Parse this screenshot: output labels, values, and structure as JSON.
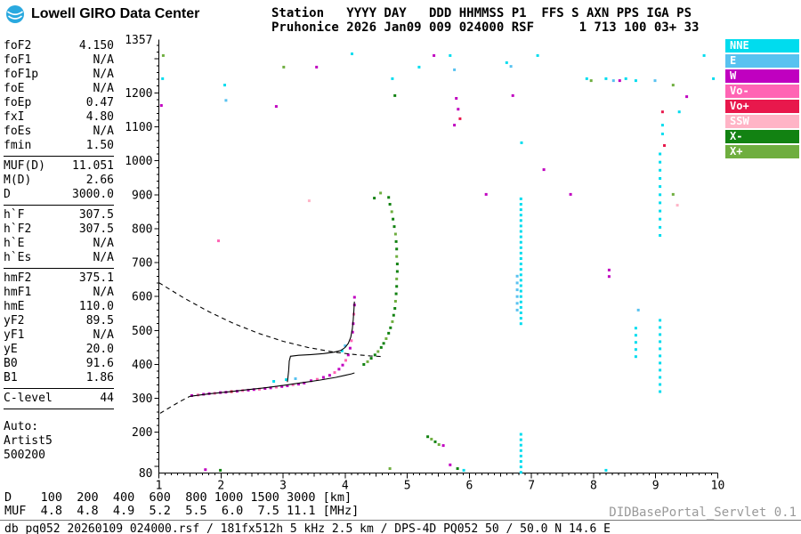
{
  "header": {
    "logo_text": "Lowell GIRO Data Center",
    "station_line1": "Station   YYYY DAY   DDD HHMMSS P1  FFS S AXN PPS IGA PS",
    "station_line2": "Pruhonice 2026 Jan09 009 024000 RSF      1 713 100 03+ 33"
  },
  "parameters": {
    "sections": [
      [
        [
          "foF2",
          "4.150"
        ],
        [
          "foF1",
          "N/A"
        ],
        [
          "foF1p",
          "N/A"
        ],
        [
          "foE",
          "N/A"
        ],
        [
          "foEp",
          "0.47"
        ],
        [
          "fxI",
          "4.80"
        ],
        [
          "foEs",
          "N/A"
        ],
        [
          "fmin",
          "1.50"
        ]
      ],
      [
        [
          "MUF(D)",
          "11.051"
        ],
        [
          "M(D)",
          "2.66"
        ],
        [
          "D",
          "3000.0"
        ]
      ],
      [
        [
          "h`F",
          "307.5"
        ],
        [
          "h`F2",
          "307.5"
        ],
        [
          "h`E",
          "N/A"
        ],
        [
          "h`Es",
          "N/A"
        ]
      ],
      [
        [
          "hmF2",
          "375.1"
        ],
        [
          "hmF1",
          "N/A"
        ],
        [
          "hmE",
          "110.0"
        ],
        [
          "yF2",
          "89.5"
        ],
        [
          "yF1",
          "N/A"
        ],
        [
          "yE",
          "20.0"
        ],
        [
          "B0",
          "91.6"
        ],
        [
          "B1",
          "1.86"
        ]
      ],
      [
        [
          "C-level",
          "44"
        ]
      ]
    ],
    "auto_lines": [
      "Auto:",
      "Artist5",
      "500200"
    ]
  },
  "legend": {
    "items": [
      {
        "label": "NNE",
        "color": "#00DCEE"
      },
      {
        "label": "E",
        "color": "#58C2F0"
      },
      {
        "label": "W",
        "color": "#C000C0"
      },
      {
        "label": "Vo-",
        "color": "#FF64B4"
      },
      {
        "label": "Vo+",
        "color": "#E8184C"
      },
      {
        "label": "SSW",
        "color": "#FFB4C6"
      },
      {
        "label": "X-",
        "color": "#128212"
      },
      {
        "label": "X+",
        "color": "#6FAE3F"
      }
    ]
  },
  "footer": {
    "muf_table": {
      "d_label": "D",
      "muf_label": "MUF",
      "distances": [
        100,
        200,
        400,
        600,
        800,
        1000,
        1500,
        3000
      ],
      "muf": [
        4.8,
        4.8,
        4.9,
        5.2,
        5.5,
        6.0,
        7.5,
        11.1
      ],
      "d_unit": "[km]",
      "muf_unit": "[MHz]"
    },
    "record_info": "db pq052 20260109 024000.rsf / 181fx512h 5 kHz 2.5 km / DPS-4D PQ052 50 / 50.0 N 14.6 E",
    "watermark": "DIDBasePortal_Servlet 0.1"
  },
  "chart_data": {
    "type": "scatter",
    "title": "Pruhonice ionogram 2026 Jan09 009 024000",
    "x_axis": {
      "label": "[MHz]",
      "min": 1,
      "max": 10,
      "ticks": [
        1,
        2,
        3,
        4,
        5,
        6,
        7,
        8,
        9,
        10
      ]
    },
    "y_axis": {
      "label": "[km]",
      "min": 80,
      "max": 1357,
      "tick_labels": [
        1357,
        1200,
        1100,
        1000,
        900,
        800,
        700,
        600,
        500,
        400,
        300,
        200,
        80
      ]
    },
    "palette": {
      "NNE": "#00DCEE",
      "E": "#58C2F0",
      "W": "#C000C0",
      "Vo-": "#FF64B4",
      "Vo+": "#E8184C",
      "SSW": "#FFB4C6",
      "X-": "#128212",
      "X+": "#6FAE3F"
    },
    "points": [
      [
        1.07,
        1310,
        "X+"
      ],
      [
        1.06,
        1242,
        "NNE"
      ],
      [
        1.04,
        1163,
        "W"
      ],
      [
        2.06,
        1223,
        "NNE"
      ],
      [
        2.08,
        1178,
        "E"
      ],
      [
        2.89,
        1160,
        "W"
      ],
      [
        3.01,
        1276,
        "X+"
      ],
      [
        3.54,
        1276,
        "W"
      ],
      [
        4.11,
        1315,
        "NNE"
      ],
      [
        4.76,
        1242,
        "NNE"
      ],
      [
        4.8,
        1192,
        "X-"
      ],
      [
        5.19,
        1276,
        "NNE"
      ],
      [
        5.43,
        1310,
        "W"
      ],
      [
        5.69,
        1310,
        "NNE"
      ],
      [
        5.76,
        1268,
        "E"
      ],
      [
        5.79,
        1184,
        "W"
      ],
      [
        5.82,
        1152,
        "W"
      ],
      [
        5.85,
        1124,
        "Vo+"
      ],
      [
        6.6,
        1289,
        "NNE"
      ],
      [
        6.67,
        1278,
        "E"
      ],
      [
        6.7,
        1192,
        "W"
      ],
      [
        7.1,
        1310,
        "NNE"
      ],
      [
        7.89,
        1242,
        "NNE"
      ],
      [
        7.96,
        1236,
        "X+"
      ],
      [
        8.2,
        1242,
        "NNE"
      ],
      [
        8.32,
        1236,
        "E"
      ],
      [
        8.42,
        1236,
        "W"
      ],
      [
        8.52,
        1242,
        "NNE"
      ],
      [
        8.68,
        1236,
        "NNE"
      ],
      [
        8.99,
        1236,
        "E"
      ],
      [
        9.11,
        1144,
        "Vo+"
      ],
      [
        9.28,
        1223,
        "X+"
      ],
      [
        9.38,
        1144,
        "NNE"
      ],
      [
        9.5,
        1189,
        "W"
      ],
      [
        9.78,
        1310,
        "NNE"
      ],
      [
        9.93,
        1242,
        "NNE"
      ],
      [
        5.76,
        1105,
        "W"
      ],
      [
        6.84,
        1053,
        "NNE"
      ],
      [
        7.2,
        974,
        "W"
      ],
      [
        7.63,
        901,
        "W"
      ],
      [
        6.27,
        901,
        "W"
      ],
      [
        1.96,
        764,
        "Vo-"
      ],
      [
        3.42,
        882,
        "SSW"
      ],
      [
        4.47,
        890,
        "X-"
      ],
      [
        4.57,
        905,
        "X+"
      ],
      [
        9.11,
        1105,
        "NNE"
      ],
      [
        9.11,
        1079,
        "NNE"
      ],
      [
        9.14,
        1045,
        "Vo+"
      ],
      [
        8.25,
        678,
        "W"
      ],
      [
        8.25,
        659,
        "W"
      ],
      [
        9.28,
        901,
        "X+"
      ],
      [
        9.35,
        869,
        "SSW"
      ],
      [
        8.72,
        560,
        "E"
      ],
      [
        9.07,
        1020,
        "NNE"
      ],
      [
        9.07,
        996,
        "NNE"
      ],
      [
        9.07,
        972,
        "NNE"
      ],
      [
        9.07,
        948,
        "NNE"
      ],
      [
        9.07,
        924,
        "NNE"
      ],
      [
        9.07,
        900,
        "NNE"
      ],
      [
        9.07,
        876,
        "NNE"
      ],
      [
        9.07,
        852,
        "NNE"
      ],
      [
        9.07,
        828,
        "NNE"
      ],
      [
        9.07,
        804,
        "NNE"
      ],
      [
        9.07,
        780,
        "NNE"
      ],
      [
        9.07,
        530,
        "NNE"
      ],
      [
        9.07,
        509,
        "NNE"
      ],
      [
        9.07,
        488,
        "NNE"
      ],
      [
        9.07,
        467,
        "NNE"
      ],
      [
        9.07,
        446,
        "NNE"
      ],
      [
        9.07,
        425,
        "NNE"
      ],
      [
        9.07,
        404,
        "NNE"
      ],
      [
        9.07,
        383,
        "NNE"
      ],
      [
        9.07,
        362,
        "NNE"
      ],
      [
        9.07,
        341,
        "NNE"
      ],
      [
        9.07,
        320,
        "NNE"
      ],
      [
        8.68,
        507,
        "NNE"
      ],
      [
        8.68,
        486,
        "NNE"
      ],
      [
        8.68,
        465,
        "NNE"
      ],
      [
        8.68,
        444,
        "NNE"
      ],
      [
        8.68,
        423,
        "NNE"
      ],
      [
        6.83,
        520,
        "NNE"
      ],
      [
        6.83,
        536,
        "NNE"
      ],
      [
        6.83,
        552,
        "NNE"
      ],
      [
        6.83,
        568,
        "NNE"
      ],
      [
        6.83,
        584,
        "NNE"
      ],
      [
        6.83,
        600,
        "NNE"
      ],
      [
        6.83,
        616,
        "NNE"
      ],
      [
        6.83,
        632,
        "NNE"
      ],
      [
        6.83,
        648,
        "NNE"
      ],
      [
        6.83,
        664,
        "NNE"
      ],
      [
        6.83,
        680,
        "NNE"
      ],
      [
        6.83,
        696,
        "NNE"
      ],
      [
        6.83,
        712,
        "NNE"
      ],
      [
        6.83,
        728,
        "NNE"
      ],
      [
        6.83,
        744,
        "NNE"
      ],
      [
        6.83,
        760,
        "NNE"
      ],
      [
        6.83,
        776,
        "NNE"
      ],
      [
        6.83,
        792,
        "NNE"
      ],
      [
        6.83,
        808,
        "NNE"
      ],
      [
        6.83,
        824,
        "NNE"
      ],
      [
        6.83,
        840,
        "NNE"
      ],
      [
        6.83,
        856,
        "NNE"
      ],
      [
        6.83,
        872,
        "NNE"
      ],
      [
        6.83,
        888,
        "NNE"
      ],
      [
        6.77,
        560,
        "E"
      ],
      [
        6.77,
        580,
        "E"
      ],
      [
        6.77,
        600,
        "E"
      ],
      [
        6.77,
        620,
        "E"
      ],
      [
        6.77,
        640,
        "E"
      ],
      [
        6.77,
        660,
        "E"
      ],
      [
        6.83,
        82,
        "NNE"
      ],
      [
        6.83,
        98,
        "NNE"
      ],
      [
        6.83,
        114,
        "NNE"
      ],
      [
        6.83,
        130,
        "NNE"
      ],
      [
        6.83,
        146,
        "NNE"
      ],
      [
        6.83,
        162,
        "NNE"
      ],
      [
        6.83,
        178,
        "NNE"
      ],
      [
        6.83,
        194,
        "NNE"
      ],
      [
        4.3,
        400,
        "X-"
      ],
      [
        4.36,
        408,
        "X+"
      ],
      [
        4.42,
        418,
        "X-"
      ],
      [
        4.48,
        428,
        "X-"
      ],
      [
        4.53,
        438,
        "X+"
      ],
      [
        4.58,
        450,
        "X-"
      ],
      [
        4.62,
        462,
        "X-"
      ],
      [
        4.66,
        476,
        "X+"
      ],
      [
        4.7,
        492,
        "X-"
      ],
      [
        4.73,
        508,
        "X-"
      ],
      [
        4.76,
        526,
        "X+"
      ],
      [
        4.78,
        545,
        "X-"
      ],
      [
        4.8,
        565,
        "X-"
      ],
      [
        4.81,
        586,
        "X+"
      ],
      [
        4.82,
        608,
        "X-"
      ],
      [
        4.83,
        630,
        "X-"
      ],
      [
        4.83,
        652,
        "X+"
      ],
      [
        4.84,
        674,
        "X-"
      ],
      [
        4.84,
        696,
        "X-"
      ],
      [
        4.83,
        718,
        "X+"
      ],
      [
        4.83,
        740,
        "X-"
      ],
      [
        4.82,
        762,
        "X-"
      ],
      [
        4.81,
        784,
        "X+"
      ],
      [
        4.79,
        806,
        "X-"
      ],
      [
        4.77,
        828,
        "X-"
      ],
      [
        4.75,
        850,
        "X+"
      ],
      [
        4.72,
        872,
        "X-"
      ],
      [
        4.7,
        892,
        "X-"
      ],
      [
        1.53,
        308,
        "W"
      ],
      [
        1.63,
        310,
        "Vo-"
      ],
      [
        1.72,
        312,
        "W"
      ],
      [
        1.81,
        314,
        "W"
      ],
      [
        1.9,
        315,
        "Vo-"
      ],
      [
        1.99,
        317,
        "W"
      ],
      [
        2.08,
        318,
        "W"
      ],
      [
        2.17,
        320,
        "Vo+"
      ],
      [
        2.26,
        321,
        "W"
      ],
      [
        2.35,
        323,
        "Vo-"
      ],
      [
        2.44,
        324,
        "W"
      ],
      [
        2.53,
        326,
        "W"
      ],
      [
        2.62,
        327,
        "Vo-"
      ],
      [
        2.71,
        329,
        "W"
      ],
      [
        2.8,
        331,
        "W"
      ],
      [
        2.89,
        333,
        "Vo-"
      ],
      [
        2.98,
        335,
        "W"
      ],
      [
        3.07,
        337,
        "W"
      ],
      [
        3.16,
        340,
        "Vo-"
      ],
      [
        3.25,
        342,
        "W"
      ],
      [
        3.34,
        345,
        "W"
      ],
      [
        3.45,
        352,
        "W"
      ],
      [
        3.55,
        356,
        "Vo-"
      ],
      [
        3.65,
        362,
        "W"
      ],
      [
        3.75,
        368,
        "W"
      ],
      [
        3.83,
        376,
        "Vo-"
      ],
      [
        3.9,
        386,
        "W"
      ],
      [
        3.96,
        398,
        "W"
      ],
      [
        4.01,
        412,
        "Vo-"
      ],
      [
        4.05,
        428,
        "W"
      ],
      [
        4.08,
        448,
        "W"
      ],
      [
        4.1,
        470,
        "Vo-"
      ],
      [
        4.12,
        495,
        "W"
      ],
      [
        4.13,
        520,
        "W"
      ],
      [
        4.14,
        548,
        "Vo-"
      ],
      [
        4.15,
        575,
        "W"
      ],
      [
        4.15,
        598,
        "W"
      ],
      [
        3.95,
        440,
        "NNE"
      ],
      [
        4.0,
        455,
        "E"
      ],
      [
        2.85,
        350,
        "NNE"
      ],
      [
        3.05,
        355,
        "NNE"
      ],
      [
        3.2,
        358,
        "E"
      ],
      [
        5.33,
        187,
        "X-"
      ],
      [
        5.39,
        180,
        "X+"
      ],
      [
        5.45,
        172,
        "X-"
      ],
      [
        5.51,
        164,
        "X+"
      ],
      [
        5.58,
        161,
        "W"
      ],
      [
        1.75,
        90,
        "W"
      ],
      [
        1.99,
        88,
        "X-"
      ],
      [
        4.72,
        93,
        "X+"
      ],
      [
        5.69,
        104,
        "W"
      ],
      [
        5.81,
        93,
        "X-"
      ],
      [
        5.91,
        88,
        "NNE"
      ],
      [
        8.2,
        88,
        "NNE"
      ]
    ],
    "curves": [
      {
        "name": "transmission-curve",
        "dashed": true,
        "points": [
          [
            1.0,
            641
          ],
          [
            1.4,
            596
          ],
          [
            1.8,
            556
          ],
          [
            2.2,
            521
          ],
          [
            2.6,
            492
          ],
          [
            3.0,
            468
          ],
          [
            3.4,
            450
          ],
          [
            3.8,
            437
          ],
          [
            4.1,
            430
          ],
          [
            4.4,
            425
          ],
          [
            4.62,
            423
          ]
        ]
      },
      {
        "name": "profile-extrapolated",
        "dashed": true,
        "points": [
          [
            1.02,
            256
          ],
          [
            1.2,
            276
          ],
          [
            1.35,
            292
          ],
          [
            1.5,
            306
          ]
        ]
      },
      {
        "name": "true-height-profile",
        "dashed": false,
        "points": [
          [
            1.5,
            306
          ],
          [
            1.8,
            313
          ],
          [
            2.1,
            319
          ],
          [
            2.4,
            325
          ],
          [
            2.7,
            331
          ],
          [
            3.0,
            338
          ],
          [
            3.3,
            346
          ],
          [
            3.6,
            354
          ],
          [
            3.85,
            362
          ],
          [
            4.0,
            368
          ],
          [
            4.1,
            372
          ],
          [
            4.15,
            375
          ]
        ]
      },
      {
        "name": "o-trace",
        "dashed": false,
        "points": [
          [
            3.07,
            348
          ],
          [
            3.09,
            380
          ],
          [
            3.1,
            410
          ],
          [
            3.12,
            424
          ],
          [
            3.25,
            427
          ],
          [
            3.45,
            429
          ],
          [
            3.65,
            432
          ],
          [
            3.82,
            436
          ],
          [
            3.93,
            441
          ],
          [
            4.0,
            450
          ],
          [
            4.05,
            462
          ],
          [
            4.09,
            480
          ],
          [
            4.115,
            505
          ],
          [
            4.13,
            532
          ],
          [
            4.14,
            558
          ],
          [
            4.148,
            585
          ]
        ]
      }
    ]
  }
}
